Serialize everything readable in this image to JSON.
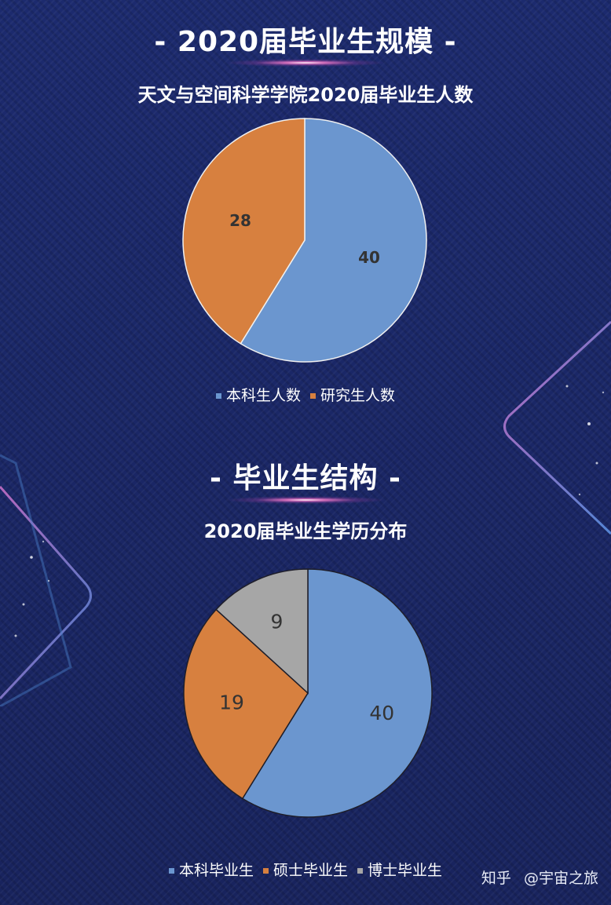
{
  "colors": {
    "blue": "#6b96cf",
    "orange": "#d7803f",
    "gray": "#a6a6a6",
    "background": "#1b2766"
  },
  "section1": {
    "title": "- 2020届毕业生规模 -"
  },
  "section2": {
    "title": "- 毕业生结构 -"
  },
  "watermark": {
    "platform": "知乎",
    "author": "@宇宙之旅"
  },
  "chart_data": [
    {
      "type": "pie",
      "title": "天文与空间科学学院2020届毕业生人数",
      "categories": [
        "本科生人数",
        "研究生人数"
      ],
      "values": [
        40,
        28
      ],
      "colors": [
        "#6b96cf",
        "#d7803f"
      ],
      "label_style": "bold",
      "legend": "bottom"
    },
    {
      "type": "pie",
      "title": "2020届毕业生学历分布",
      "categories": [
        "本科毕业生",
        "硕士毕业生",
        "博士毕业生"
      ],
      "values": [
        40,
        19,
        9
      ],
      "colors": [
        "#6b96cf",
        "#d7803f",
        "#a6a6a6"
      ],
      "label_style": "normal",
      "legend": "bottom"
    }
  ]
}
